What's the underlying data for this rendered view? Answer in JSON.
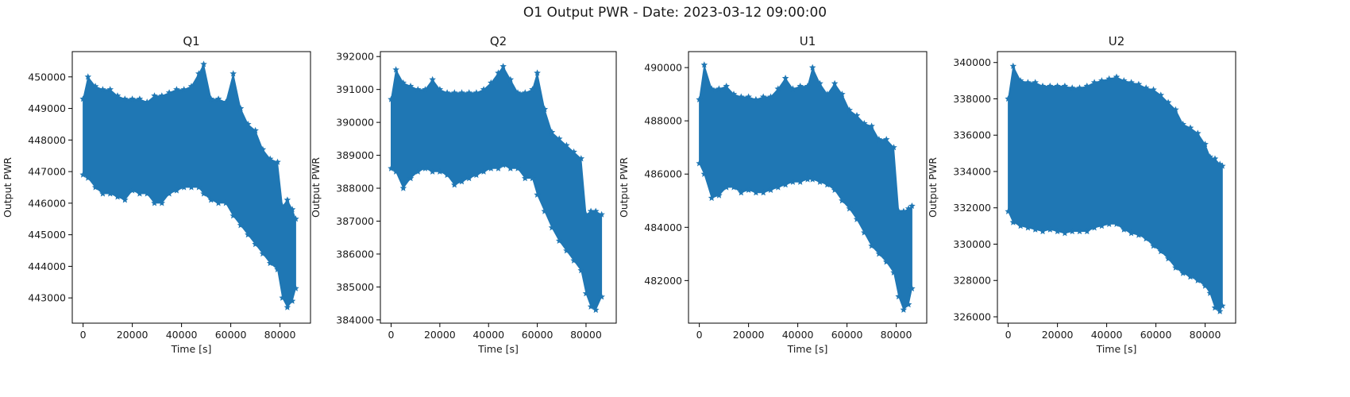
{
  "figure": {
    "title": "O1 Output PWR - Date: 2023-03-12 09:00:00"
  },
  "colors": {
    "series": "#1f77b4",
    "axis": "#000000"
  },
  "chart_data": [
    {
      "type": "scatter",
      "title": "Q1",
      "xlabel": "Time [s]",
      "ylabel": "Output PWR",
      "marker": "star",
      "grid": false,
      "xlim": [
        -4400,
        92400
      ],
      "ylim": [
        442200,
        450800
      ],
      "xticks": [
        0,
        20000,
        40000,
        60000,
        80000
      ],
      "yticks": [
        443000,
        444000,
        445000,
        446000,
        447000,
        448000,
        449000,
        450000
      ],
      "x": [
        0,
        2000,
        5000,
        8000,
        11000,
        14000,
        17000,
        20000,
        23000,
        26000,
        29000,
        32000,
        35000,
        38000,
        41000,
        44000,
        47000,
        49000,
        52000,
        55000,
        58000,
        61000,
        64000,
        67000,
        70000,
        73000,
        76000,
        79000,
        81000,
        83000,
        85000,
        86400
      ],
      "ymax": [
        449300,
        450000,
        449700,
        449600,
        449600,
        449400,
        449300,
        449300,
        449300,
        449200,
        449400,
        449400,
        449500,
        449600,
        449600,
        449700,
        450100,
        450400,
        449300,
        449300,
        449200,
        450100,
        449000,
        448500,
        448300,
        447700,
        447400,
        447300,
        445900,
        446100,
        445800,
        445500
      ],
      "ymin": [
        446900,
        446800,
        446500,
        446300,
        446300,
        446200,
        446100,
        446400,
        446300,
        446300,
        446000,
        446000,
        446300,
        446400,
        446500,
        446500,
        446500,
        446300,
        446100,
        446000,
        446000,
        445600,
        445300,
        445000,
        444700,
        444400,
        444100,
        443900,
        443000,
        442700,
        442900,
        443300
      ]
    },
    {
      "type": "scatter",
      "title": "Q2",
      "xlabel": "Time [s]",
      "ylabel": "Output PWR",
      "marker": "star",
      "grid": false,
      "xlim": [
        -4400,
        92400
      ],
      "ylim": [
        383900,
        392150
      ],
      "xticks": [
        0,
        20000,
        40000,
        60000,
        80000
      ],
      "yticks": [
        384000,
        385000,
        386000,
        387000,
        388000,
        389000,
        390000,
        391000,
        392000
      ],
      "x": [
        0,
        2000,
        5000,
        8000,
        11000,
        14000,
        17000,
        20000,
        23000,
        26000,
        29000,
        32000,
        35000,
        38000,
        41000,
        44000,
        46000,
        49000,
        52000,
        55000,
        58000,
        60000,
        63000,
        66000,
        69000,
        72000,
        75000,
        78000,
        80000,
        82000,
        84000,
        86400
      ],
      "ymax": [
        390700,
        391600,
        391200,
        391100,
        391000,
        391000,
        391300,
        391000,
        390900,
        390900,
        390900,
        390900,
        390900,
        391000,
        391200,
        391500,
        391700,
        391300,
        390900,
        390900,
        391000,
        391500,
        390400,
        389700,
        389500,
        389300,
        389100,
        388900,
        387200,
        387300,
        387300,
        387200
      ],
      "ymin": [
        388600,
        388500,
        388000,
        388300,
        388500,
        388600,
        388500,
        388500,
        388400,
        388100,
        388200,
        388300,
        388400,
        388500,
        388600,
        388600,
        388700,
        388600,
        388600,
        388300,
        388300,
        387800,
        387300,
        386800,
        386400,
        386100,
        385800,
        385500,
        384800,
        384400,
        384300,
        384700
      ]
    },
    {
      "type": "scatter",
      "title": "U1",
      "xlabel": "Time [s]",
      "ylabel": "Output PWR",
      "marker": "star",
      "grid": false,
      "xlim": [
        -4400,
        92400
      ],
      "ylim": [
        480400,
        490600
      ],
      "xticks": [
        0,
        20000,
        40000,
        60000,
        80000
      ],
      "yticks": [
        482000,
        484000,
        486000,
        488000,
        490000
      ],
      "x": [
        0,
        2000,
        5000,
        8000,
        11000,
        14000,
        17000,
        20000,
        23000,
        26000,
        29000,
        32000,
        35000,
        38000,
        41000,
        44000,
        46000,
        49000,
        52000,
        55000,
        58000,
        61000,
        64000,
        67000,
        70000,
        73000,
        76000,
        79000,
        81000,
        83000,
        85000,
        86400
      ],
      "ymax": [
        488800,
        490100,
        489200,
        489200,
        489300,
        489000,
        488900,
        488900,
        488800,
        488900,
        488900,
        489200,
        489600,
        489200,
        489300,
        489300,
        490000,
        489400,
        489000,
        489400,
        489000,
        488400,
        488200,
        487900,
        487800,
        487300,
        487300,
        487000,
        484600,
        484600,
        484700,
        484800
      ],
      "ymin": [
        486400,
        486000,
        485100,
        485200,
        485500,
        485500,
        485300,
        485400,
        485300,
        485300,
        485400,
        485500,
        485600,
        485700,
        485700,
        485800,
        485800,
        485700,
        485600,
        485400,
        485000,
        484700,
        484300,
        483800,
        483300,
        483000,
        482700,
        482300,
        481400,
        480900,
        481100,
        481700
      ]
    },
    {
      "type": "scatter",
      "title": "U2",
      "xlabel": "Time [s]",
      "ylabel": "Output PWR",
      "marker": "star",
      "grid": false,
      "xlim": [
        -4400,
        92400
      ],
      "ylim": [
        325650,
        340600
      ],
      "xticks": [
        0,
        20000,
        40000,
        60000,
        80000
      ],
      "yticks": [
        326000,
        328000,
        330000,
        332000,
        334000,
        336000,
        338000,
        340000
      ],
      "x": [
        0,
        2000,
        5000,
        8000,
        11000,
        14000,
        17000,
        20000,
        23000,
        26000,
        29000,
        32000,
        35000,
        38000,
        41000,
        44000,
        47000,
        50000,
        53000,
        56000,
        59000,
        62000,
        65000,
        68000,
        71000,
        74000,
        77000,
        80000,
        82000,
        84000,
        86000,
        87000
      ],
      "ymax": [
        338000,
        339800,
        339000,
        338900,
        338900,
        338700,
        338700,
        338700,
        338700,
        338600,
        338600,
        338700,
        338900,
        339000,
        339100,
        339200,
        339000,
        338900,
        338800,
        338600,
        338500,
        338200,
        337800,
        337400,
        336600,
        336400,
        336100,
        335500,
        334800,
        334700,
        334400,
        334300
      ],
      "ymin": [
        331800,
        331200,
        331000,
        330900,
        330800,
        330700,
        330800,
        330700,
        330600,
        330700,
        330700,
        330700,
        330900,
        331000,
        331100,
        331100,
        330800,
        330600,
        330500,
        330300,
        329900,
        329600,
        329200,
        328700,
        328400,
        328200,
        328000,
        327700,
        327300,
        326500,
        326300,
        326600
      ]
    }
  ]
}
